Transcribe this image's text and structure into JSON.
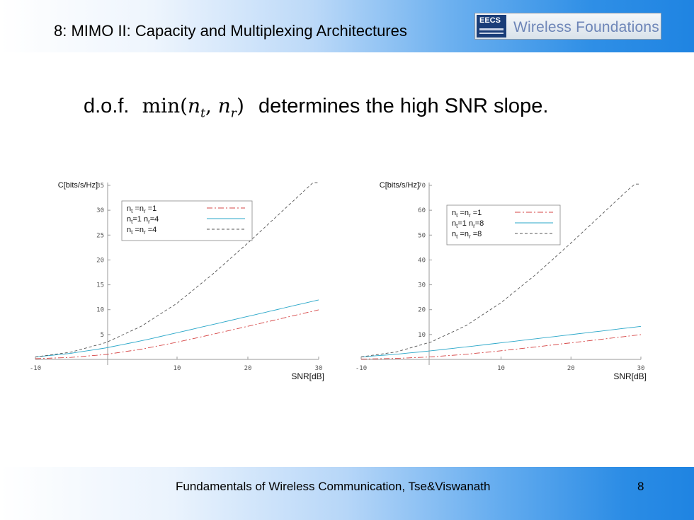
{
  "header": {
    "title": "8: MIMO II: Capacity and Multiplexing Architectures",
    "logo_eecs": "EECS",
    "logo_text": "Wireless Foundations"
  },
  "headline": {
    "prefix": "d.o.f.",
    "math_func": "min",
    "math_open": "(",
    "math_var1": "n",
    "math_sub1": "t",
    "math_sep": ", ",
    "math_var2": "n",
    "math_sub2": "r",
    "math_close": ")",
    "suffix": "determines the high SNR slope."
  },
  "footer": {
    "text": "Fundamentals of Wireless Communication, Tse&Viswanath",
    "page": "8"
  },
  "colors": {
    "header_gradient_end": "#1f84e2",
    "series_siso": "#d64545",
    "series_simo": "#2aa7c9",
    "series_mimo": "#555555"
  },
  "chart_data": [
    {
      "type": "line",
      "ylabel": "C[bits/s/Hz]",
      "xlabel": "SNR[dB]",
      "xlim": [
        -10,
        30
      ],
      "ylim": [
        0,
        35
      ],
      "xticks": [
        "-10",
        "10",
        "20",
        "30"
      ],
      "yticks": [
        "5",
        "10",
        "15",
        "20",
        "25",
        "30",
        "35"
      ],
      "grid": false,
      "legend_position": "top-left",
      "series": [
        {
          "name": "nt=nr=1",
          "style": "dash-dot",
          "color": "#d64545",
          "x": [
            -10,
            -5,
            0,
            5,
            10,
            15,
            20,
            25,
            30
          ],
          "y": [
            0.14,
            0.4,
            1.0,
            2.06,
            3.46,
            5.03,
            6.66,
            8.31,
            9.97
          ]
        },
        {
          "name": "nt=1 nr=4",
          "style": "solid",
          "color": "#2aa7c9",
          "x": [
            -10,
            -5,
            0,
            5,
            10,
            15,
            20,
            25,
            30
          ],
          "y": [
            0.49,
            1.22,
            2.32,
            3.75,
            5.36,
            7.0,
            8.65,
            10.31,
            11.97
          ]
        },
        {
          "name": "nt=nr=4",
          "style": "dashed",
          "color": "#555555",
          "x": [
            -10,
            -5,
            0,
            5,
            10,
            15,
            20,
            25,
            30
          ],
          "y": [
            0.5,
            1.45,
            3.4,
            6.7,
            11.3,
            17.1,
            23.4,
            30.0,
            36.6
          ]
        }
      ]
    },
    {
      "type": "line",
      "ylabel": "C[bits/s/Hz]",
      "xlabel": "SNR[dB]",
      "xlim": [
        -10,
        30
      ],
      "ylim": [
        0,
        70
      ],
      "xticks": [
        "-10",
        "10",
        "20",
        "30"
      ],
      "yticks": [
        "10",
        "20",
        "30",
        "40",
        "50",
        "60",
        "70"
      ],
      "grid": false,
      "legend_position": "top-right",
      "series": [
        {
          "name": "nt=nr=1",
          "style": "dash-dot",
          "color": "#d64545",
          "x": [
            -10,
            -5,
            0,
            5,
            10,
            15,
            20,
            25,
            30
          ],
          "y": [
            0.14,
            0.4,
            1.0,
            2.06,
            3.46,
            5.03,
            6.66,
            8.31,
            9.97
          ]
        },
        {
          "name": "nt=1 nr=8",
          "style": "solid",
          "color": "#2aa7c9",
          "x": [
            -10,
            -5,
            0,
            5,
            10,
            15,
            20,
            25,
            30
          ],
          "y": [
            1.0,
            2.07,
            3.46,
            5.03,
            6.66,
            8.32,
            9.97,
            11.6,
            13.3
          ]
        },
        {
          "name": "nt=nr=8",
          "style": "dashed",
          "color": "#555555",
          "x": [
            -10,
            -5,
            0,
            5,
            10,
            15,
            20,
            25,
            30
          ],
          "y": [
            1.0,
            3.0,
            7.0,
            13.6,
            22.8,
            34.2,
            46.8,
            59.9,
            73.0
          ]
        }
      ]
    }
  ]
}
